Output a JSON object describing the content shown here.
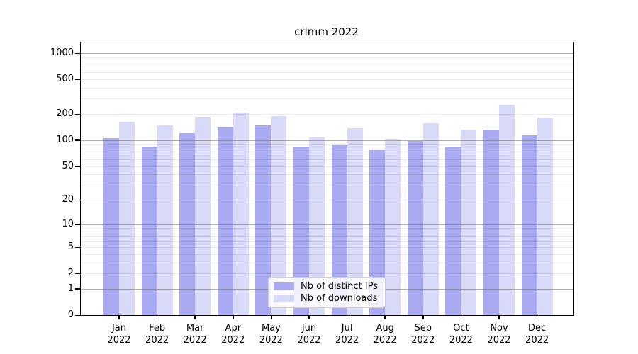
{
  "title": "crlmm 2022",
  "chart_data": {
    "type": "bar",
    "title": "crlmm 2022",
    "categories": [
      "Jan 2022",
      "Feb 2022",
      "Mar 2022",
      "Apr 2022",
      "May 2022",
      "Jun 2022",
      "Jul 2022",
      "Aug 2022",
      "Sep 2022",
      "Oct 2022",
      "Nov 2022",
      "Dec 2022"
    ],
    "month_labels": [
      "Jan",
      "Feb",
      "Mar",
      "Apr",
      "May",
      "Jun",
      "Jul",
      "Aug",
      "Sep",
      "Oct",
      "Nov",
      "Dec"
    ],
    "year_label": "2022",
    "series": [
      {
        "name": "Nb of distinct IPs",
        "color": "#aaaaf2",
        "values": [
          105,
          84,
          120,
          139,
          146,
          82,
          86,
          76,
          97,
          82,
          131,
          112
        ]
      },
      {
        "name": "Nb of downloads",
        "color": "#d9d9f8",
        "values": [
          160,
          148,
          185,
          207,
          187,
          107,
          137,
          100,
          155,
          130,
          255,
          181
        ]
      }
    ],
    "yscale": "log1p",
    "ylim": [
      0,
      1320
    ],
    "yticks": [
      0,
      1,
      2,
      5,
      10,
      20,
      50,
      100,
      200,
      500,
      1000
    ],
    "grid_major_values": [
      1,
      10,
      100,
      1000
    ],
    "grid_minor_values": [
      2,
      3,
      4,
      5,
      6,
      7,
      8,
      9,
      20,
      30,
      40,
      50,
      60,
      70,
      80,
      90,
      200,
      300,
      400,
      500,
      600,
      700,
      800,
      900
    ],
    "legend_position": "lower center",
    "xlabel": "",
    "ylabel": ""
  },
  "colors": {
    "bar_ips": "#aaaaf2",
    "bar_downloads": "#d9d9f8",
    "grid_major": "#6e6e6e",
    "grid_minor": "#e8e8e8",
    "axis": "#000000",
    "background": "#ffffff"
  }
}
